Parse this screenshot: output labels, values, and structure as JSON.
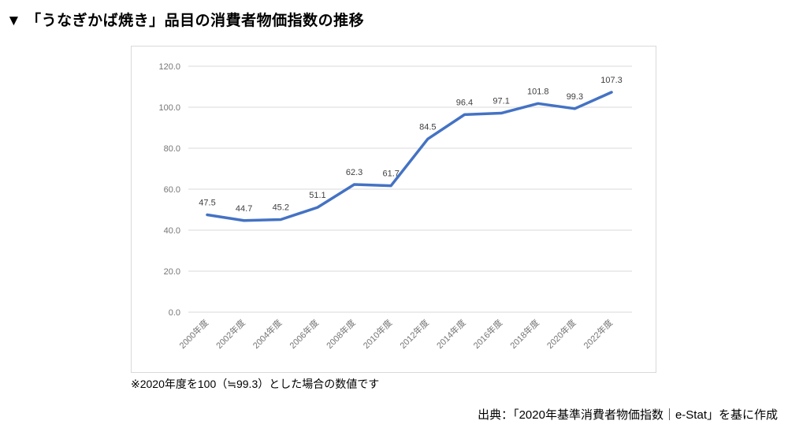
{
  "page": {
    "title": "▼ 「うなぎかば焼き」品目の消費者物価指数の推移",
    "footnote": "※2020年度を100（≒99.3）とした場合の数値です",
    "source": "出典：「2020年基準消費者物価指数｜e-Stat」を基に作成"
  },
  "chart_data": {
    "type": "line",
    "title": "「うなぎかば焼き」品目の消費者物価指数の推移",
    "categories": [
      "2000年度",
      "2002年度",
      "2004年度",
      "2006年度",
      "2008年度",
      "2010年度",
      "2012年度",
      "2014年度",
      "2016年度",
      "2018年度",
      "2020年度",
      "2022年度"
    ],
    "values": [
      47.5,
      44.7,
      45.2,
      51.1,
      62.3,
      61.7,
      84.5,
      96.4,
      97.1,
      101.8,
      99.3,
      107.3
    ],
    "xlabel": "",
    "ylabel": "",
    "ylim": [
      0,
      120
    ],
    "yticks": [
      0,
      20,
      40,
      60,
      80,
      100,
      120
    ],
    "ytick_labels": [
      "0.0",
      "20.0",
      "40.0",
      "60.0",
      "80.0",
      "100.0",
      "120.0"
    ],
    "grid": true,
    "legend": "none",
    "colors": {
      "line": "#4472C4",
      "grid": "#d9d9d9",
      "axis_text": "#757575",
      "data_label": "#404040"
    }
  }
}
